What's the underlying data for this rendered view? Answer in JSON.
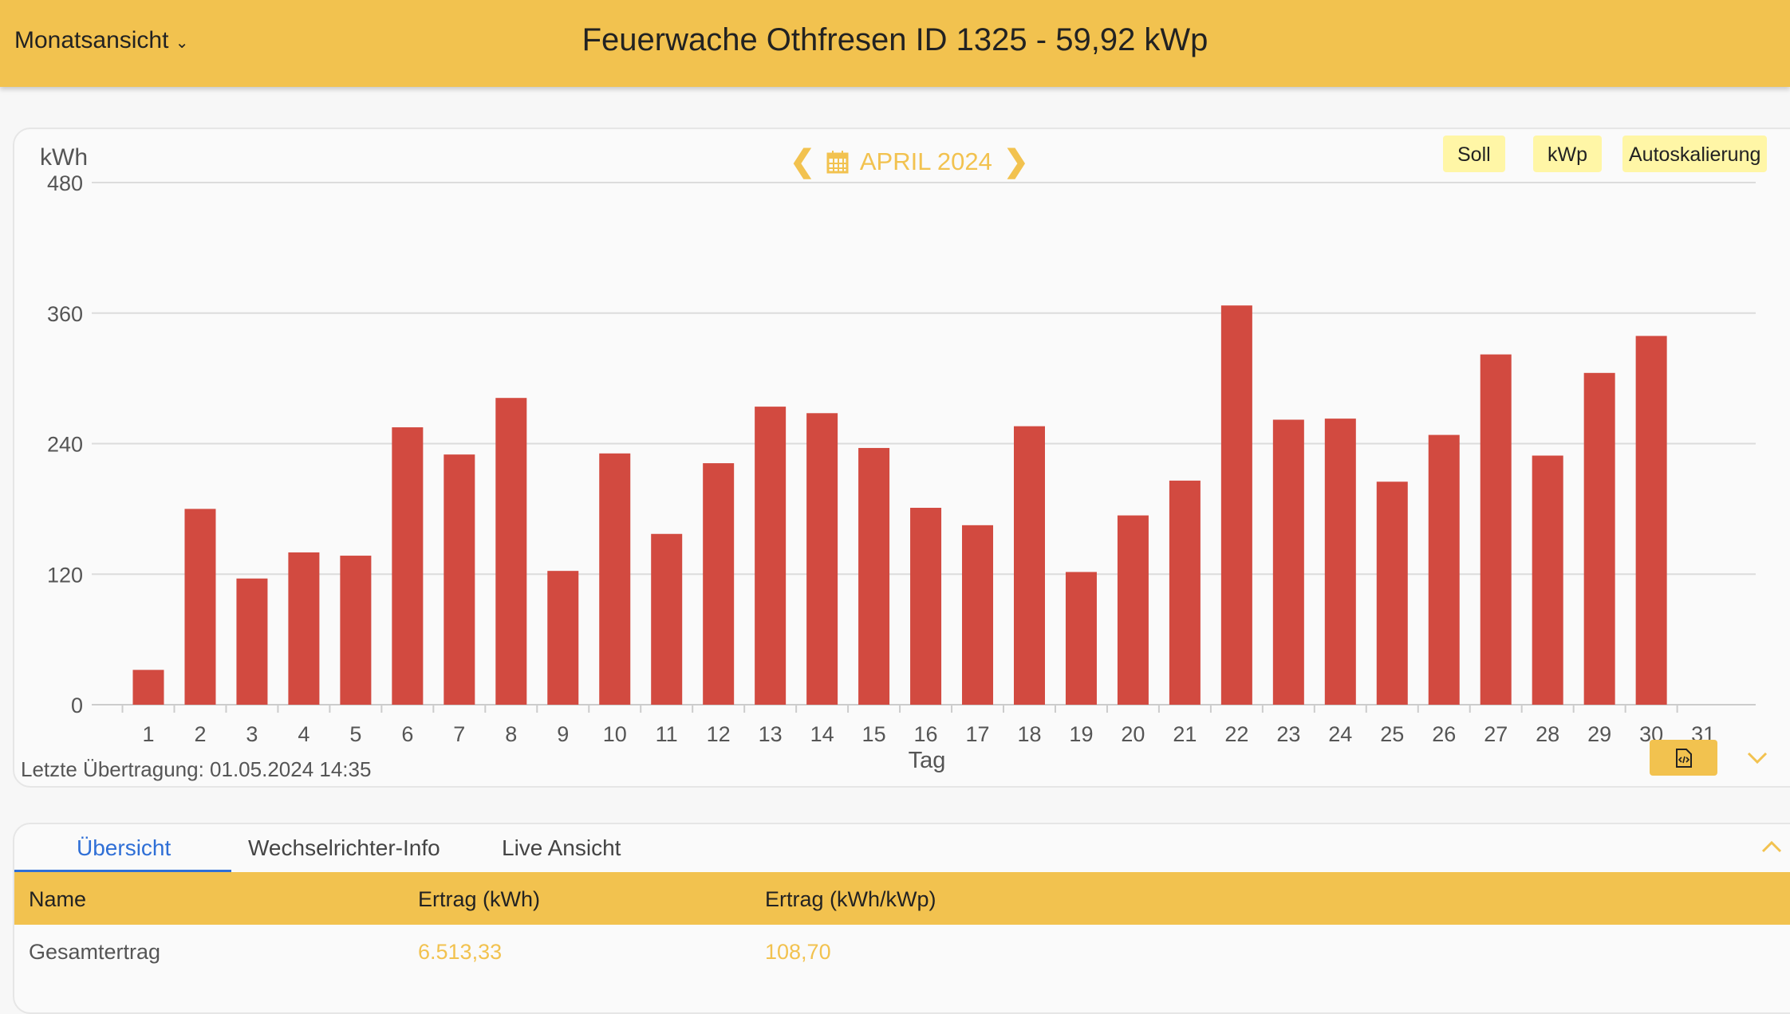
{
  "header": {
    "view_select": "Monatsansicht",
    "title": "Feuerwache Othfresen ID 1325 - 59,92 kWp"
  },
  "chart_controls": {
    "period": "APRIL 2024",
    "buttons": [
      "Soll",
      "kWp",
      "Autoskalierung"
    ],
    "last_transfer": "Letzte Übertragung: 01.05.2024 14:35"
  },
  "colors": {
    "accent": "#f2c24f",
    "bar": "#d24a40",
    "button_bg": "#fff6a6",
    "tab_active": "#2f6fd6"
  },
  "chart_data": {
    "type": "bar",
    "title": "",
    "xlabel": "Tag",
    "ylabel": "kWh",
    "ylim": [
      0,
      480
    ],
    "yticks": [
      0,
      120,
      240,
      360,
      480
    ],
    "categories": [
      "1",
      "2",
      "3",
      "4",
      "5",
      "6",
      "7",
      "8",
      "9",
      "10",
      "11",
      "12",
      "13",
      "14",
      "15",
      "16",
      "17",
      "18",
      "19",
      "20",
      "21",
      "22",
      "23",
      "24",
      "25",
      "26",
      "27",
      "28",
      "29",
      "30",
      "31"
    ],
    "values": [
      32,
      180,
      116,
      140,
      137,
      255,
      230,
      282,
      123,
      231,
      157,
      222,
      274,
      268,
      236,
      181,
      165,
      256,
      122,
      174,
      206,
      367,
      262,
      263,
      205,
      248,
      322,
      229,
      305,
      339,
      null
    ],
    "grid": true
  },
  "tabs": [
    {
      "label": "Übersicht",
      "active": true
    },
    {
      "label": "Wechselrichter-Info"
    },
    {
      "label": "Live Ansicht"
    }
  ],
  "table": {
    "headers": [
      "Name",
      "Ertrag (kWh)",
      "Ertrag (kWh/kWp)"
    ],
    "rows": [
      [
        "Gesamtertrag",
        "6.513,33",
        "108,70"
      ]
    ]
  }
}
